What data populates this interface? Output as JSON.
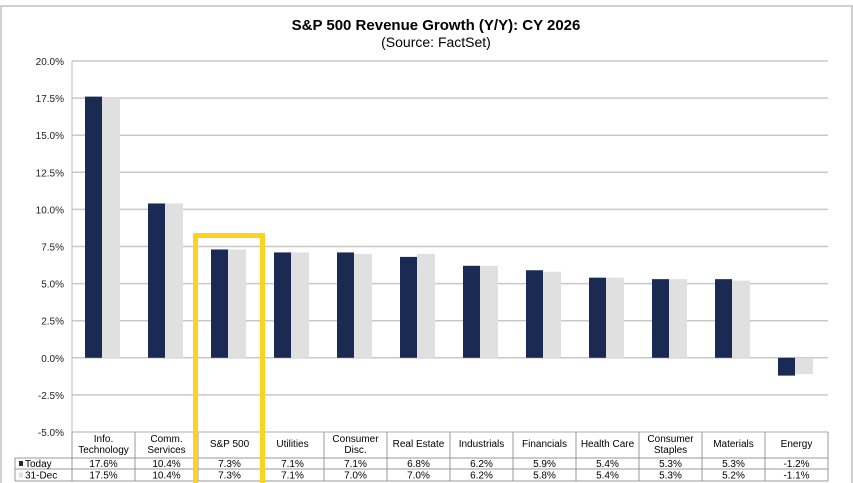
{
  "chart_data": {
    "type": "bar",
    "title": "S&P 500 Revenue Growth (Y/Y): CY 2026",
    "subtitle": "(Source: FactSet)",
    "categories": [
      [
        "Info.",
        "Technology"
      ],
      [
        "Comm.",
        "Services"
      ],
      [
        "S&P 500"
      ],
      [
        "Utilities"
      ],
      [
        "Consumer",
        "Disc."
      ],
      [
        "Real Estate"
      ],
      [
        "Industrials"
      ],
      [
        "Financials"
      ],
      [
        "Health Care"
      ],
      [
        "Consumer",
        "Staples"
      ],
      [
        "Materials"
      ],
      [
        "Energy"
      ]
    ],
    "series": [
      {
        "name": "Today",
        "color": "#1B2A52",
        "values": [
          17.6,
          10.4,
          7.3,
          7.1,
          7.1,
          6.8,
          6.2,
          5.9,
          5.4,
          5.3,
          5.3,
          -1.2
        ],
        "labels": [
          "17.6%",
          "10.4%",
          "7.3%",
          "7.1%",
          "7.1%",
          "6.8%",
          "6.2%",
          "5.9%",
          "5.4%",
          "5.3%",
          "5.3%",
          "-1.2%"
        ]
      },
      {
        "name": "31-Dec",
        "color": "#E0E0E0",
        "values": [
          17.5,
          10.4,
          7.3,
          7.1,
          7.0,
          7.0,
          6.2,
          5.8,
          5.4,
          5.3,
          5.2,
          -1.1
        ],
        "labels": [
          "17.5%",
          "10.4%",
          "7.3%",
          "7.1%",
          "7.0%",
          "7.0%",
          "6.2%",
          "5.8%",
          "5.4%",
          "5.3%",
          "5.2%",
          "-1.1%"
        ]
      }
    ],
    "ylim": [
      -5,
      20
    ],
    "yticks": [
      20,
      17.5,
      15,
      12.5,
      10,
      7.5,
      5,
      2.5,
      0,
      -2.5,
      -5
    ],
    "ytick_labels": [
      "20.0%",
      "17.5%",
      "15.0%",
      "12.5%",
      "10.0%",
      "7.5%",
      "5.0%",
      "2.5%",
      "0.0%",
      "-2.5%",
      "-5.0%"
    ],
    "grid": true,
    "legend": "data-table",
    "highlight_category": "S&P 500",
    "highlight_color": "#FFD21F"
  }
}
